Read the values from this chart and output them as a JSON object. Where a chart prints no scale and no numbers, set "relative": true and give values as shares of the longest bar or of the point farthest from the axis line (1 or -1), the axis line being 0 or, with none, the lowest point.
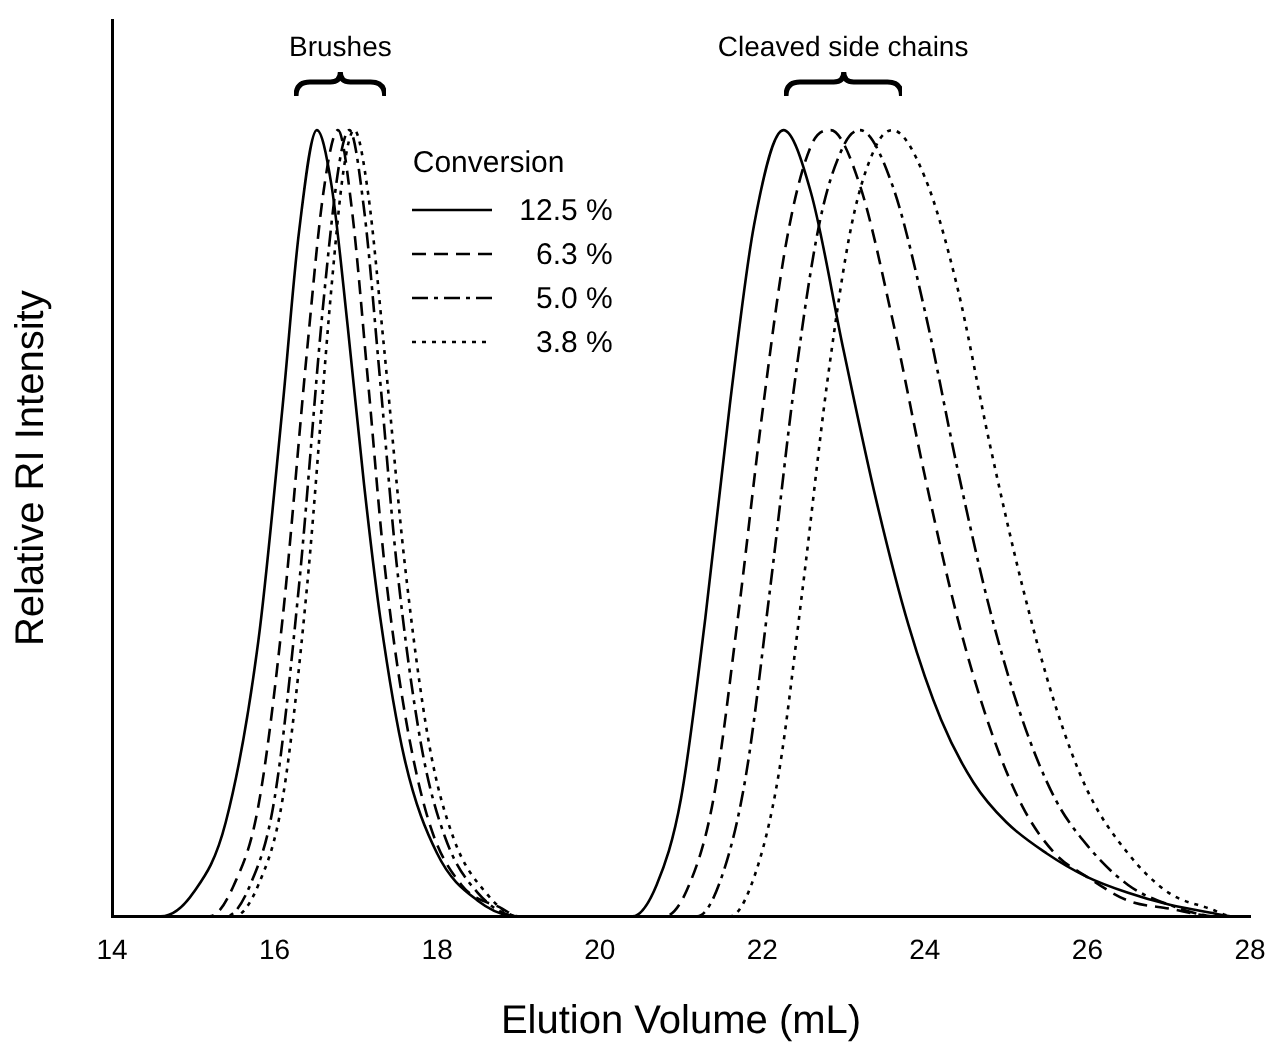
{
  "chart_data": {
    "type": "line",
    "relative": true,
    "xlabel": "Elution Volume (mL)",
    "ylabel": "Relative RI Intensity",
    "legend_title": "Conversion",
    "legend": "top",
    "grid": false,
    "marker": "none",
    "xlim": [
      14,
      28
    ],
    "xticks": [
      14,
      16,
      18,
      20,
      22,
      24,
      26,
      28
    ],
    "annotations": [
      "Brushes",
      "Cleaved side chains"
    ],
    "series": [
      {
        "name": "12.5 %",
        "color": "#000000",
        "line_style": "solid",
        "x": [
          14,
          14.6,
          15.0,
          15.4,
          15.8,
          16.1,
          16.3,
          16.52,
          16.7,
          16.9,
          17.1,
          17.3,
          17.6,
          18.0,
          18.5,
          19.0,
          20.4,
          20.7,
          21.0,
          21.3,
          21.6,
          21.9,
          22.26,
          22.6,
          23.0,
          23.4,
          23.8,
          24.2,
          24.6,
          25.0,
          25.5,
          26.0,
          26.5,
          27.0,
          27.5,
          27.8,
          28
        ],
        "values": [
          0,
          0,
          0.03,
          0.12,
          0.35,
          0.65,
          0.87,
          1,
          0.93,
          0.75,
          0.55,
          0.38,
          0.2,
          0.08,
          0.02,
          0,
          0,
          0.04,
          0.15,
          0.38,
          0.65,
          0.88,
          1,
          0.92,
          0.72,
          0.53,
          0.37,
          0.25,
          0.17,
          0.12,
          0.08,
          0.05,
          0.03,
          0.015,
          0.005,
          0,
          0
        ]
      },
      {
        "name": "6.3 %",
        "color": "#000000",
        "line_style": "dashed",
        "x": [
          14,
          15.2,
          15.5,
          15.8,
          16.1,
          16.4,
          16.6,
          16.78,
          16.95,
          17.15,
          17.35,
          17.6,
          17.9,
          18.3,
          18.8,
          19.0,
          20.8,
          21.1,
          21.4,
          21.7,
          22.0,
          22.3,
          22.6,
          22.84,
          23.2,
          23.6,
          24.0,
          24.4,
          24.8,
          25.2,
          25.6,
          26.0,
          26.5,
          27.0,
          27.6,
          28
        ],
        "values": [
          0,
          0,
          0.04,
          0.14,
          0.38,
          0.72,
          0.92,
          1,
          0.9,
          0.68,
          0.45,
          0.26,
          0.12,
          0.04,
          0.01,
          0,
          0,
          0.04,
          0.15,
          0.38,
          0.64,
          0.86,
          0.98,
          1,
          0.93,
          0.76,
          0.56,
          0.38,
          0.24,
          0.14,
          0.08,
          0.05,
          0.02,
          0.01,
          0,
          0
        ]
      },
      {
        "name": "5.0 %",
        "color": "#000000",
        "line_style": "dashdot",
        "x": [
          14,
          15.4,
          15.7,
          16.0,
          16.3,
          16.6,
          16.8,
          16.92,
          17.1,
          17.3,
          17.5,
          17.8,
          18.1,
          18.5,
          19.0,
          21.2,
          21.5,
          21.8,
          22.1,
          22.4,
          22.7,
          23.0,
          23.2,
          23.6,
          24.0,
          24.4,
          24.8,
          25.2,
          25.6,
          26.0,
          26.5,
          27.0,
          27.6,
          28
        ],
        "values": [
          0,
          0,
          0.04,
          0.15,
          0.42,
          0.78,
          0.96,
          1,
          0.9,
          0.68,
          0.45,
          0.22,
          0.1,
          0.03,
          0,
          0,
          0.05,
          0.18,
          0.42,
          0.68,
          0.88,
          0.98,
          1,
          0.93,
          0.77,
          0.57,
          0.39,
          0.25,
          0.15,
          0.09,
          0.04,
          0.015,
          0,
          0
        ]
      },
      {
        "name": "3.8 %",
        "color": "#000000",
        "line_style": "dotted",
        "x": [
          14,
          15.5,
          15.8,
          16.1,
          16.4,
          16.7,
          16.85,
          16.98,
          17.15,
          17.35,
          17.6,
          17.9,
          18.2,
          18.6,
          19.0,
          21.6,
          21.9,
          22.2,
          22.5,
          22.8,
          23.1,
          23.4,
          23.6,
          24.0,
          24.4,
          24.8,
          25.2,
          25.6,
          26.0,
          26.5,
          27.0,
          27.5,
          27.8,
          28
        ],
        "values": [
          0,
          0,
          0.04,
          0.15,
          0.42,
          0.8,
          0.95,
          1,
          0.92,
          0.72,
          0.45,
          0.22,
          0.1,
          0.03,
          0,
          0,
          0.05,
          0.18,
          0.42,
          0.68,
          0.88,
          0.98,
          1,
          0.94,
          0.8,
          0.6,
          0.42,
          0.27,
          0.16,
          0.08,
          0.03,
          0.01,
          0,
          0
        ]
      }
    ]
  }
}
